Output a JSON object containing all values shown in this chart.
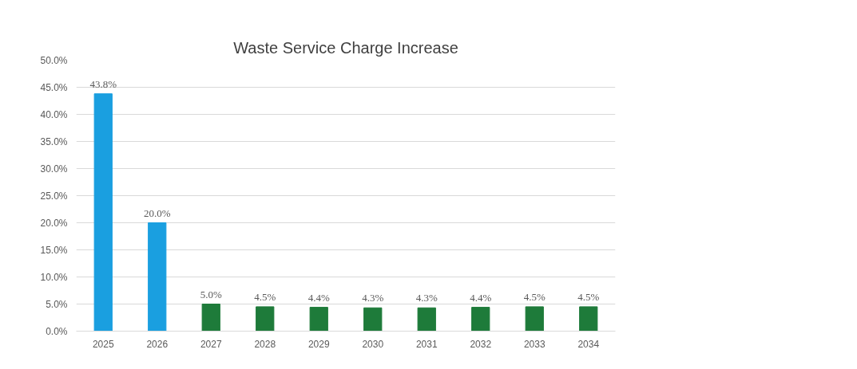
{
  "chart_data": {
    "type": "bar",
    "title": "Waste Service Charge Increase",
    "categories": [
      "2025",
      "2026",
      "2027",
      "2028",
      "2029",
      "2030",
      "2031",
      "2032",
      "2033",
      "2034"
    ],
    "values": [
      43.8,
      20.0,
      5.0,
      4.5,
      4.4,
      4.3,
      4.3,
      4.4,
      4.5,
      4.5
    ],
    "colors": [
      "#1a9fe0",
      "#1a9fe0",
      "#1e7b3a",
      "#1e7b3a",
      "#1e7b3a",
      "#1e7b3a",
      "#1e7b3a",
      "#1e7b3a",
      "#1e7b3a",
      "#1e7b3a"
    ],
    "value_labels": [
      "43.8%",
      "20.0%",
      "5.0%",
      "4.5%",
      "4.4%",
      "4.3%",
      "4.3%",
      "4.4%",
      "4.5%",
      "4.5%"
    ],
    "ylim": [
      0,
      50
    ],
    "yticks": [
      {
        "value": 0,
        "label": "0.0%"
      },
      {
        "value": 5,
        "label": "5.0%"
      },
      {
        "value": 10,
        "label": "10.0%"
      },
      {
        "value": 15,
        "label": "15.0%"
      },
      {
        "value": 20,
        "label": "20.0%"
      },
      {
        "value": 25,
        "label": "25.0%"
      },
      {
        "value": 30,
        "label": "30.0%"
      },
      {
        "value": 35,
        "label": "35.0%"
      },
      {
        "value": 40,
        "label": "40.0%"
      },
      {
        "value": 45,
        "label": "45.0%"
      },
      {
        "value": 50,
        "label": "50.0%"
      }
    ],
    "grid": "y"
  }
}
